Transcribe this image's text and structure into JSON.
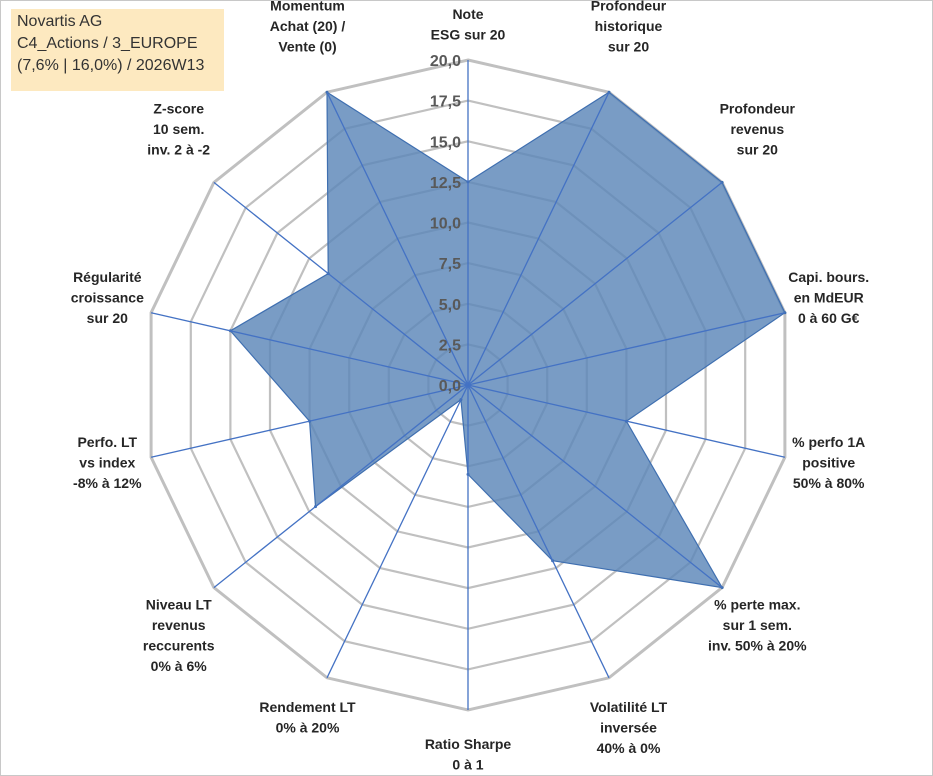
{
  "info_box": {
    "company": "Novartis AG",
    "category": "C4_Actions / 3_EUROPE",
    "params": "(7,6% | 16,0%) / 2026W13"
  },
  "colors": {
    "fill": "#5b86b8",
    "stroke": "#3f6fb0",
    "grid": "#c0c0c0",
    "spoke": "#4472c4",
    "info_bg": "#fde9c0"
  },
  "chart_data": {
    "type": "radar",
    "r_axis": {
      "min": 0,
      "max": 20,
      "step": 2.5,
      "tick_labels": [
        "0,0",
        "2,5",
        "5,0",
        "7,5",
        "10,0",
        "12,5",
        "15,0",
        "17,5",
        "20,0"
      ]
    },
    "axes": [
      {
        "label": [
          "Note",
          "ESG sur 20"
        ],
        "value": 12.5
      },
      {
        "label": [
          "Profondeur",
          "historique",
          "sur 20"
        ],
        "value": 20.0
      },
      {
        "label": [
          "Profondeur",
          "revenus",
          "sur 20"
        ],
        "value": 20.0
      },
      {
        "label": [
          "Capi. bours.",
          "en MdEUR",
          "0 à 60 G€"
        ],
        "value": 20.0
      },
      {
        "label": [
          "% perfo 1A",
          "positive",
          "50% à 80%"
        ],
        "value": 10.0
      },
      {
        "label": [
          "% perte max.",
          "sur 1 sem.",
          "inv. 50% à 20%"
        ],
        "value": 20.0
      },
      {
        "label": [
          "Volatilité LT",
          "inversée",
          "40% à 0%"
        ],
        "value": 12.0
      },
      {
        "label": [
          "Ratio Sharpe",
          "0 à 1"
        ],
        "value": 5.5
      },
      {
        "label": [
          "Rendement LT",
          "0% à 20%"
        ],
        "value": 1.0
      },
      {
        "label": [
          "Niveau LT",
          "revenus",
          "reccurents",
          "0% à 6%"
        ],
        "value": 12.0
      },
      {
        "label": [
          "Perfo. LT",
          "vs index",
          "-8% à 12%"
        ],
        "value": 10.0
      },
      {
        "label": [
          "Régularité",
          "croissance",
          "sur 20"
        ],
        "value": 15.0
      },
      {
        "label": [
          "Z-score",
          "10 sem.",
          "inv. 2 à -2"
        ],
        "value": 11.0
      },
      {
        "label": [
          "Momentum",
          "Achat (20) /",
          "Vente (0)"
        ],
        "value": 20.0
      }
    ]
  }
}
